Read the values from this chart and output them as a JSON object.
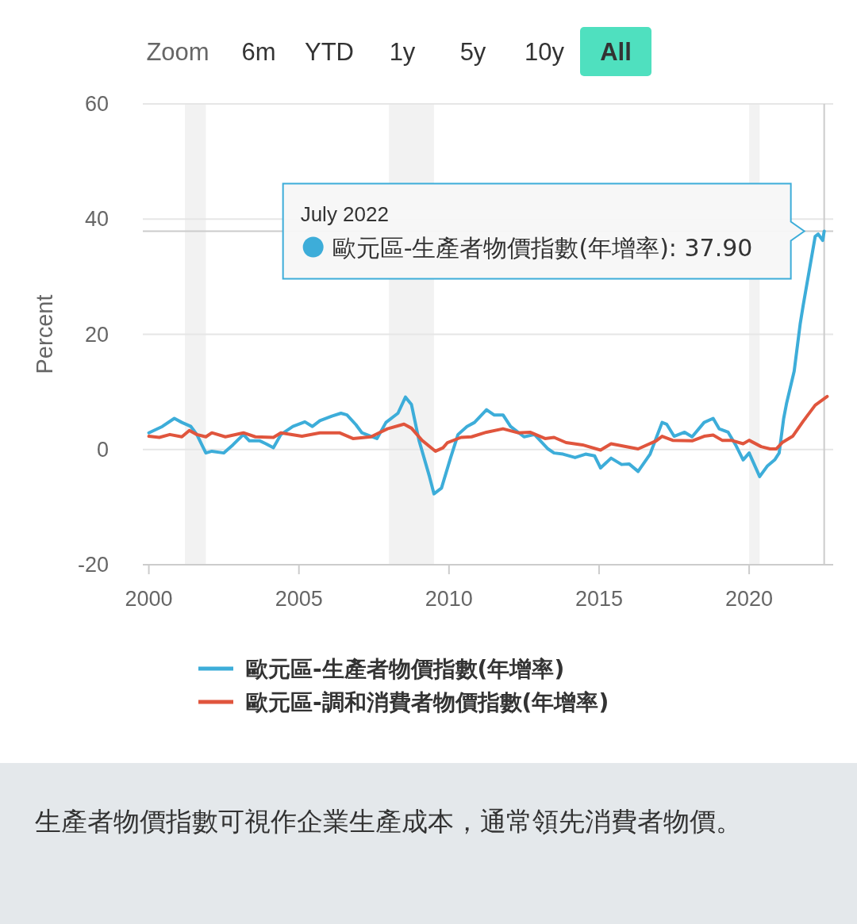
{
  "chart_data": {
    "type": "line",
    "ylabel": "Percent",
    "xlim": [
      1999.8,
      2022.8
    ],
    "xticks": [
      2000,
      2005,
      2010,
      2015,
      2020
    ],
    "ylim": [
      -20,
      60
    ],
    "yticks": [
      -20,
      0,
      20,
      40,
      60
    ],
    "grid": "y",
    "legend": "bottom",
    "line_style": "solid",
    "marker": "none",
    "series": [
      {
        "name": "歐元區-生產者物價指數(年增率)",
        "color": "#3dadd9",
        "x": [
          2000.0,
          2000.45,
          2000.85,
          2001.1,
          2001.4,
          2001.6,
          2001.9,
          2002.1,
          2002.5,
          2002.8,
          2003.15,
          2003.35,
          2003.7,
          2003.9,
          2004.15,
          2004.4,
          2004.8,
          2005.2,
          2005.45,
          2005.7,
          2006.1,
          2006.4,
          2006.6,
          2006.9,
          2007.1,
          2007.4,
          2007.6,
          2007.9,
          2008.3,
          2008.55,
          2008.75,
          2009.0,
          2009.35,
          2009.5,
          2009.75,
          2010.05,
          2010.3,
          2010.6,
          2010.85,
          2011.25,
          2011.5,
          2011.8,
          2012.05,
          2012.5,
          2012.85,
          2013.3,
          2013.5,
          2013.8,
          2014.2,
          2014.55,
          2014.85,
          2015.05,
          2015.4,
          2015.75,
          2016.0,
          2016.3,
          2016.7,
          2017.1,
          2017.25,
          2017.5,
          2017.85,
          2018.1,
          2018.5,
          2018.8,
          2019.0,
          2019.3,
          2019.55,
          2019.8,
          2020.0,
          2020.35,
          2020.6,
          2020.85,
          2021.0,
          2021.15,
          2021.25,
          2021.5,
          2021.7,
          2021.8,
          2022.0,
          2022.2,
          2022.3,
          2022.45,
          2022.5
        ],
        "values": [
          2.9,
          4.0,
          5.4,
          4.7,
          4.0,
          2.6,
          -0.6,
          -0.3,
          -0.6,
          0.8,
          2.6,
          1.5,
          1.5,
          1.0,
          0.3,
          2.6,
          4.0,
          4.8,
          4.0,
          5.0,
          5.8,
          6.3,
          6.0,
          4.3,
          2.9,
          2.3,
          1.9,
          4.7,
          6.3,
          9.1,
          7.8,
          1.6,
          -4.7,
          -7.7,
          -6.7,
          -1.5,
          2.6,
          4.0,
          4.7,
          6.9,
          6.0,
          6.0,
          4.0,
          2.2,
          2.6,
          0.1,
          -0.6,
          -0.8,
          -1.4,
          -0.8,
          -1.1,
          -3.2,
          -1.5,
          -2.6,
          -2.5,
          -3.8,
          -0.8,
          4.7,
          4.4,
          2.3,
          3.0,
          2.2,
          4.7,
          5.4,
          3.6,
          3.0,
          0.8,
          -1.8,
          -0.6,
          -4.7,
          -2.9,
          -1.8,
          -0.6,
          5.4,
          8.1,
          13.6,
          21.8,
          25.0,
          31.0,
          37.0,
          37.4,
          36.3,
          37.9
        ]
      },
      {
        "name": "歐元區-調和消費者物價指數(年增率)",
        "color": "#e0553d",
        "x": [
          2000.0,
          2000.35,
          2000.7,
          2001.1,
          2001.35,
          2001.6,
          2001.9,
          2002.1,
          2002.55,
          2003.15,
          2003.55,
          2004.15,
          2004.4,
          2005.1,
          2005.7,
          2006.35,
          2006.8,
          2007.4,
          2007.95,
          2008.5,
          2008.75,
          2009.1,
          2009.55,
          2009.8,
          2009.95,
          2010.4,
          2010.75,
          2011.25,
          2011.8,
          2012.3,
          2012.7,
          2013.2,
          2013.5,
          2013.9,
          2014.45,
          2015.05,
          2015.4,
          2016.3,
          2016.9,
          2017.1,
          2017.45,
          2018.1,
          2018.5,
          2018.8,
          2019.1,
          2019.4,
          2019.8,
          2020.0,
          2020.4,
          2020.7,
          2020.9,
          2021.1,
          2021.45,
          2021.8,
          2022.2,
          2022.6
        ],
        "values": [
          2.3,
          2.1,
          2.6,
          2.2,
          3.3,
          2.6,
          2.2,
          2.9,
          2.2,
          2.9,
          2.2,
          2.1,
          2.9,
          2.3,
          2.9,
          2.9,
          1.9,
          2.2,
          3.6,
          4.4,
          3.7,
          1.6,
          -0.3,
          0.3,
          1.2,
          2.1,
          2.2,
          3.0,
          3.6,
          2.9,
          3.0,
          1.9,
          2.1,
          1.2,
          0.8,
          -0.1,
          1.0,
          0.1,
          1.5,
          2.3,
          1.6,
          1.5,
          2.3,
          2.5,
          1.6,
          1.6,
          1.0,
          1.6,
          0.5,
          0.1,
          0.1,
          1.2,
          2.3,
          4.9,
          7.7,
          9.2
        ]
      }
    ],
    "bands": [
      {
        "axis": "x",
        "from": 2001.2,
        "to": 2001.9,
        "color": "#f2f2f2"
      },
      {
        "axis": "x",
        "from": 2008.0,
        "to": 2009.5,
        "color": "#f2f2f2"
      },
      {
        "axis": "x",
        "from": 2020.0,
        "to": 2020.35,
        "color": "#f2f2f2"
      }
    ],
    "ref_lines": [
      {
        "axis": "y",
        "value": 37.9,
        "color": "#cccccc"
      },
      {
        "axis": "x",
        "value": 2022.5,
        "color": "#cccccc"
      }
    ],
    "annotations": [
      "Zoom",
      "6m",
      "YTD",
      "1y",
      "5y",
      "10y",
      "All",
      "July 2022",
      "歐元區-生產者物價指數(年增率): 37.90",
      "生產者物價指數可視作企業生產成本，通常領先消費者物價。"
    ]
  }
}
